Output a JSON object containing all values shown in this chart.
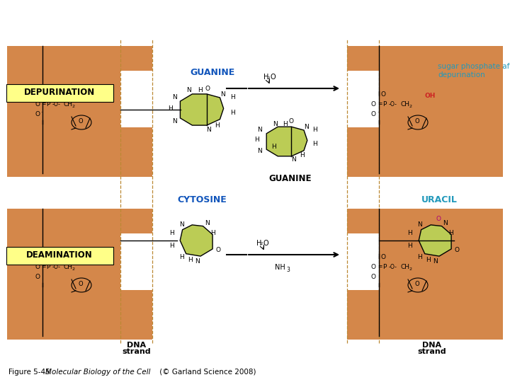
{
  "bg_color": "#ffffff",
  "orange_color": "#D4874A",
  "yellow_color": "#FFFF88",
  "green_color": "#BBCC55",
  "blue_label_color": "#1155BB",
  "cyan_label_color": "#2299BB",
  "red_color": "#CC2222",
  "magenta_color": "#AA0077",
  "black": "#000000",
  "caption_plain": "Figure 5-45  ",
  "caption_italic": "Molecular Biology of the Cell",
  "caption_normal": " (© Garland Science 2008)",
  "depurination_label": "DEPURINATION",
  "deamination_label": "DEAMINATION",
  "guanine_top_label": "GUANINE",
  "cytosine_label": "CYTOSINE",
  "guanine_mid_label": "GUANINE",
  "uracil_label": "URACIL",
  "sugar_phosphate_label": "sugar phosphate after\ndepurination",
  "dna_strand_label": "DNA\nstrand",
  "oh_label": "OH"
}
